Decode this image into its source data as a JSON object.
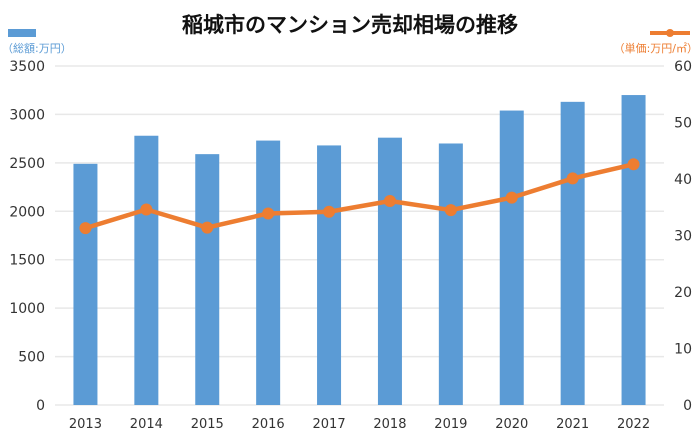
{
  "chart_data": {
    "type": "bar+line",
    "title": "稲城市のマンション売却相場の推移",
    "categories": [
      "2013",
      "2014",
      "2015",
      "2016",
      "2017",
      "2018",
      "2019",
      "2020",
      "2021",
      "2022"
    ],
    "series": [
      {
        "axis": "left",
        "kind": "bar",
        "color": "#5B9BD5",
        "values": [
          2490,
          2780,
          2590,
          2730,
          2680,
          2760,
          2700,
          3040,
          3130,
          3200
        ]
      },
      {
        "axis": "right",
        "kind": "line",
        "color": "#ED7D31",
        "values": [
          31.3,
          34.6,
          31.4,
          33.9,
          34.2,
          36.1,
          34.5,
          36.7,
          40.1,
          42.6
        ]
      }
    ],
    "y_left": {
      "label": "（総額:万円）",
      "min": 0,
      "max": 3500,
      "ticks": [
        0,
        500,
        1000,
        1500,
        2000,
        2500,
        3000,
        3500
      ]
    },
    "y_right": {
      "label": "（単価:万円/㎡）",
      "min": 0,
      "max": 60,
      "ticks": [
        0,
        10,
        20,
        30,
        40,
        50,
        60
      ]
    },
    "grid": true,
    "legend": "top-left bar icon, top-right line icon"
  }
}
